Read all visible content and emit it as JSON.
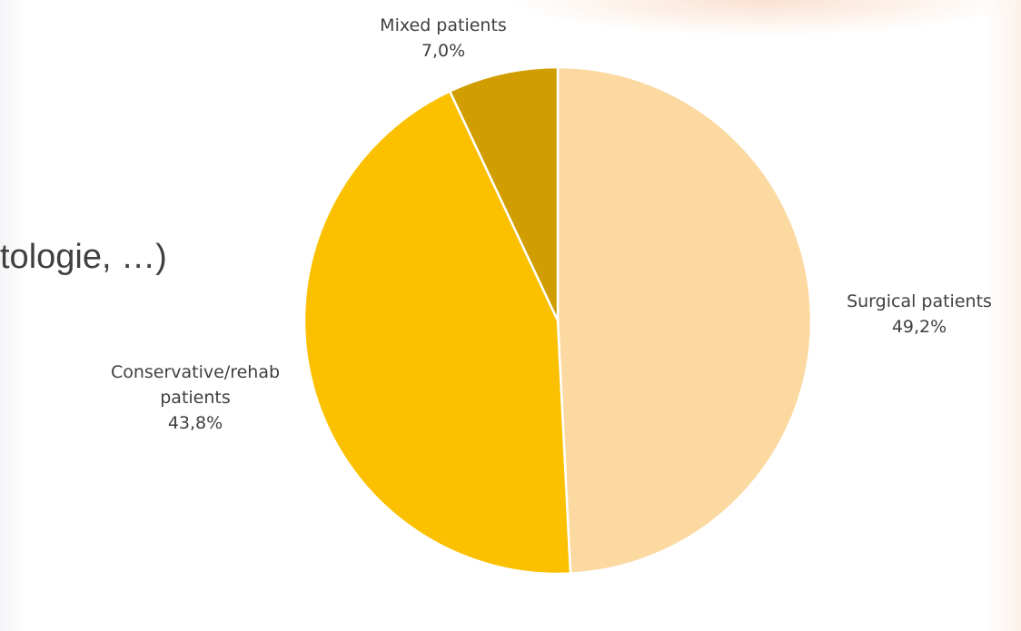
{
  "slide": {
    "fragment_text": "tologie, …)"
  },
  "chart_data": {
    "type": "pie",
    "title": "",
    "categories": [
      "Surgical patients",
      "Conservative/rehab patients",
      "Mixed patients"
    ],
    "values": [
      49.2,
      43.8,
      7.0
    ],
    "value_labels": [
      "49,2%",
      "43,8%",
      "7,0%"
    ],
    "label_lines": [
      [
        "Surgical patients",
        "49,2%"
      ],
      [
        "Conservative/rehab",
        "patients",
        "43,8%"
      ],
      [
        "Mixed patients",
        "7,0%"
      ]
    ],
    "colors": [
      "#FBD9A0",
      "#FBC000",
      "#D09E00"
    ],
    "start_angle_deg": 0,
    "direction": "clockwise",
    "legend": "none"
  }
}
